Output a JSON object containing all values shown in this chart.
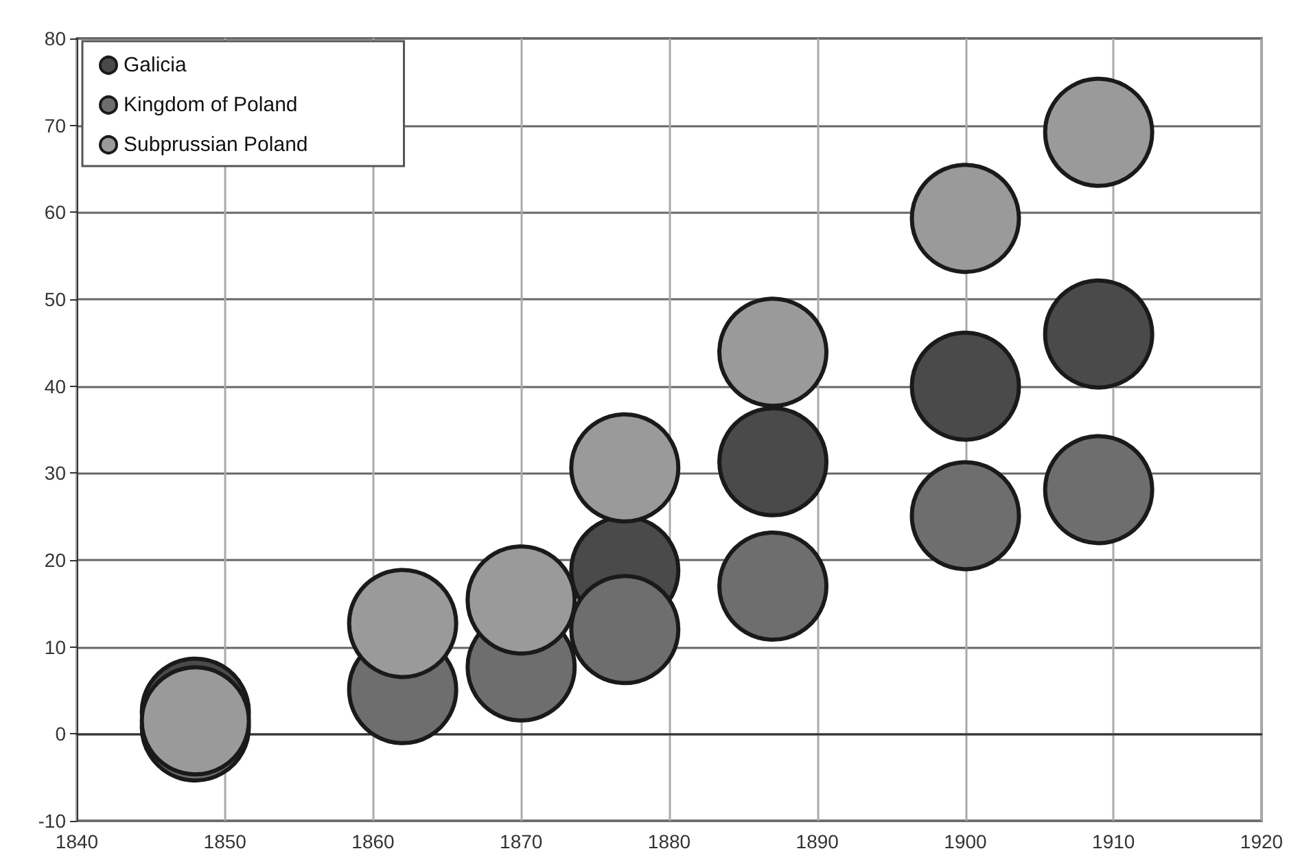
{
  "chart_data": {
    "type": "bubble",
    "x": [
      1848,
      1862,
      1870,
      1877,
      1887,
      1900,
      1909
    ],
    "series": [
      {
        "name": "Galicia",
        "color": "#4a4a4a",
        "values": [
          2.5,
          null,
          null,
          18.8,
          31.3,
          40,
          46
        ],
        "sizes": [
          1,
          null,
          null,
          1,
          1,
          1,
          1
        ]
      },
      {
        "name": "Kingdom of Poland",
        "color": "#6e6e6e",
        "values": [
          0.8,
          5.1,
          7.7,
          12,
          17,
          25.1,
          28.1
        ],
        "sizes": [
          1,
          1,
          1,
          1,
          1,
          1,
          1
        ]
      },
      {
        "name": "Subprussian Poland",
        "color": "#9a9a9a",
        "values": [
          1.5,
          12.7,
          15.4,
          30.6,
          43.9,
          59.3,
          69.2
        ],
        "sizes": [
          1,
          1,
          1,
          1,
          1,
          1,
          1
        ]
      }
    ],
    "xlim": [
      1840,
      1920
    ],
    "xticks": [
      1840,
      1850,
      1860,
      1870,
      1880,
      1890,
      1900,
      1910,
      1920
    ],
    "ylim": [
      -10,
      80
    ],
    "yticks": [
      -10,
      0,
      10,
      20,
      30,
      40,
      50,
      60,
      70,
      80
    ],
    "relative": false,
    "grid": true,
    "legend": "top left"
  }
}
